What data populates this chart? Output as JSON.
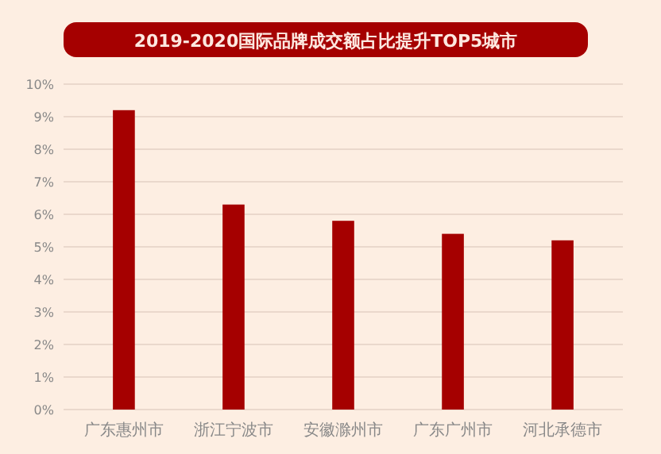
{
  "chart_data": {
    "type": "bar",
    "title": "2019-2020国际品牌成交额占比提升TOP5城市",
    "categories": [
      "广东惠州市",
      "浙江宁波市",
      "安徽滁州市",
      "广东广州市",
      "河北承德市"
    ],
    "values": [
      9.2,
      6.3,
      5.8,
      5.4,
      5.2
    ],
    "color": "#a50000",
    "ylim": [
      0,
      10
    ],
    "yticks": [
      {
        "value": 0,
        "label": "0%"
      },
      {
        "value": 1,
        "label": "1%"
      },
      {
        "value": 2,
        "label": "2%"
      },
      {
        "value": 3,
        "label": "3%"
      },
      {
        "value": 4,
        "label": "4%"
      },
      {
        "value": 5,
        "label": "5%"
      },
      {
        "value": 6,
        "label": "6%"
      },
      {
        "value": 7,
        "label": "7%"
      },
      {
        "value": 8,
        "label": "8%"
      },
      {
        "value": 9,
        "label": "9%"
      },
      {
        "value": 10,
        "label": "10%"
      }
    ],
    "grid": "y"
  }
}
